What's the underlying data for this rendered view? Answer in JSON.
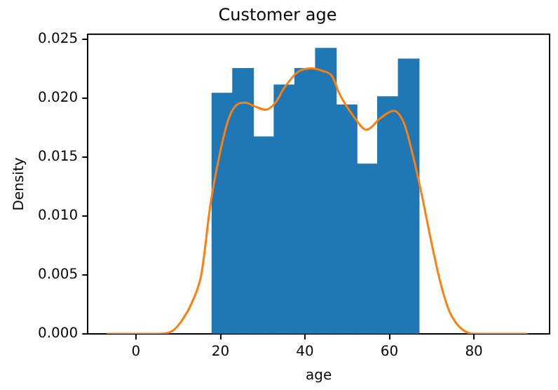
{
  "chart_data": {
    "type": "histogram",
    "title": "Customer age",
    "xlabel": "age",
    "ylabel": "Density",
    "bins": [
      18,
      22.9,
      27.8,
      32.7,
      37.6,
      42.5,
      47.4,
      52.3,
      57.2,
      62.1,
      67
    ],
    "values": [
      0.0204,
      0.0225,
      0.0167,
      0.0211,
      0.0225,
      0.0242,
      0.0194,
      0.0144,
      0.0201,
      0.0233
    ],
    "color": "#1f77b4",
    "series": [
      {
        "type": "line",
        "color": "#ff7f0e",
        "x": [
          -6.9,
          0,
          5,
          8.4,
          11,
          13.3,
          15.5,
          17.6,
          19.8,
          22,
          24.2,
          25.8,
          28,
          30.7,
          33,
          35,
          38.3,
          41.6,
          44,
          46.5,
          48.1,
          51.4,
          54.6,
          57.9,
          61,
          63.5,
          65.5,
          67.7,
          69.9,
          72.1,
          74.2,
          77.5,
          80.8,
          85,
          92.7
        ],
        "values": [
          0,
          0,
          0,
          0.0002,
          0.0012,
          0.0027,
          0.0051,
          0.0109,
          0.0152,
          0.0183,
          0.0195,
          0.0196,
          0.0193,
          0.019,
          0.0196,
          0.0208,
          0.0222,
          0.0225,
          0.0223,
          0.0218,
          0.0204,
          0.0185,
          0.0173,
          0.0183,
          0.0189,
          0.0178,
          0.0152,
          0.0117,
          0.0078,
          0.0043,
          0.0019,
          0.0003,
          0,
          0,
          0
        ]
      }
    ],
    "xlim": [
      -11.4,
      97.9
    ],
    "xticks": [
      0,
      20,
      40,
      60,
      80
    ],
    "ylim": [
      0,
      0.0254
    ],
    "yticks": [
      {
        "value": 0,
        "label": "0.000"
      },
      {
        "value": 0.005,
        "label": "0.005"
      },
      {
        "value": 0.01,
        "label": "0.010"
      },
      {
        "value": 0.015,
        "label": "0.015"
      },
      {
        "value": 0.02,
        "label": "0.020"
      },
      {
        "value": 0.025,
        "label": "0.025"
      }
    ],
    "grid": false,
    "legend": false,
    "marker": "none",
    "line_style": "solid"
  }
}
